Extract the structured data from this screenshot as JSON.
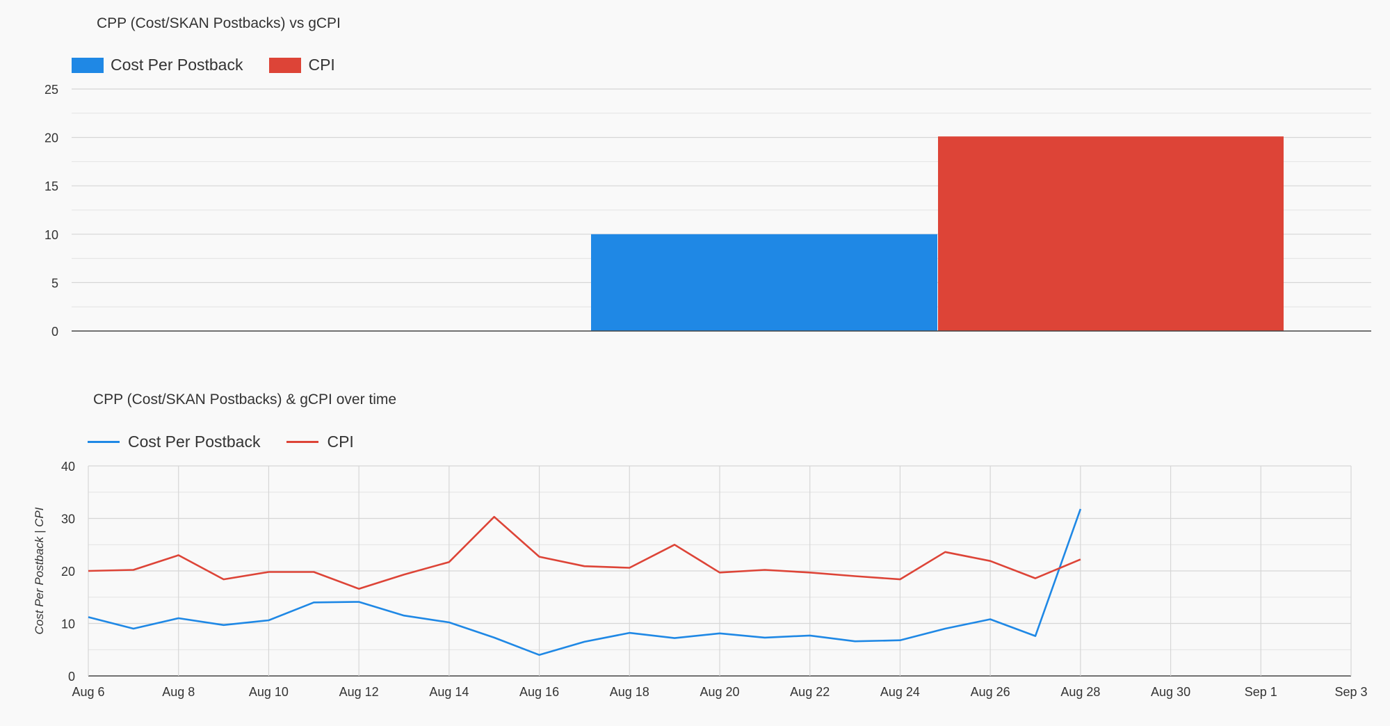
{
  "colors": {
    "cost_per_postback": "#1f88e5",
    "cpi": "#dd4437",
    "grid": "#d6d6d6",
    "axis_text": "#333333"
  },
  "chart_data": [
    {
      "type": "bar",
      "title": "CPP (Cost/SKAN Postbacks) vs gCPI",
      "legend_position": "top-left",
      "categories": [
        ""
      ],
      "series": [
        {
          "name": "Cost Per Postback",
          "values": [
            10
          ]
        },
        {
          "name": "CPI",
          "values": [
            20.1
          ]
        }
      ],
      "xlabel": "",
      "ylabel": "",
      "ylim": [
        0,
        25
      ],
      "yticks": [
        "0",
        "5",
        "10",
        "15",
        "20",
        "25"
      ],
      "grid": true
    },
    {
      "type": "line",
      "title": "CPP (Cost/SKAN Postbacks) & gCPI over time",
      "legend_position": "top-left",
      "x": [
        "Aug 6",
        "Aug 7",
        "Aug 8",
        "Aug 9",
        "Aug 10",
        "Aug 11",
        "Aug 12",
        "Aug 13",
        "Aug 14",
        "Aug 15",
        "Aug 16",
        "Aug 17",
        "Aug 18",
        "Aug 19",
        "Aug 20",
        "Aug 21",
        "Aug 22",
        "Aug 23",
        "Aug 24",
        "Aug 25",
        "Aug 26",
        "Aug 27",
        "Aug 28"
      ],
      "series": [
        {
          "name": "Cost Per Postback",
          "values": [
            11.2,
            9.0,
            11.0,
            9.7,
            10.6,
            14.0,
            14.1,
            11.5,
            10.2,
            7.3,
            4.0,
            6.5,
            8.2,
            7.2,
            8.1,
            7.3,
            7.7,
            6.6,
            6.8,
            9.0,
            10.8,
            7.6,
            31.8
          ]
        },
        {
          "name": "CPI",
          "values": [
            20.0,
            20.2,
            23.0,
            18.4,
            19.8,
            19.8,
            16.6,
            19.3,
            21.7,
            30.3,
            22.7,
            20.9,
            20.6,
            25.0,
            19.7,
            20.2,
            19.7,
            19.0,
            18.4,
            23.6,
            21.9,
            18.6,
            22.2
          ]
        }
      ],
      "xticks": [
        "Aug 6",
        "Aug 8",
        "Aug 10",
        "Aug 12",
        "Aug 14",
        "Aug 16",
        "Aug 18",
        "Aug 20",
        "Aug 22",
        "Aug 24",
        "Aug 26",
        "Aug 28",
        "Aug 30",
        "Sep 1",
        "Sep 3"
      ],
      "xlabel": "",
      "ylabel": "Cost Per Postback | CPI",
      "ylim": [
        0,
        40
      ],
      "yticks": [
        "0",
        "10",
        "20",
        "30",
        "40"
      ],
      "grid": true
    }
  ]
}
